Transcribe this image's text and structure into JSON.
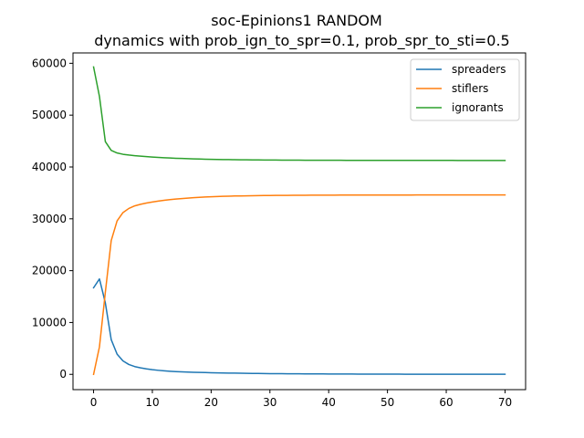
{
  "chart_data": {
    "type": "line",
    "title": "soc-Epinions1 RANDOM",
    "subtitle": "dynamics with prob_ign_to_spr=0.1, prob_spr_to_sti=0.5",
    "xlabel": "",
    "ylabel": "",
    "xlim": [
      -3.5,
      73.5
    ],
    "ylim": [
      -2950,
      62000
    ],
    "xticks": [
      0,
      10,
      20,
      30,
      40,
      50,
      60,
      70
    ],
    "yticks": [
      0,
      10000,
      20000,
      30000,
      40000,
      50000,
      60000
    ],
    "grid": false,
    "legend": "top-right",
    "x": [
      0,
      1,
      2,
      3,
      4,
      5,
      6,
      7,
      8,
      9,
      10,
      11,
      12,
      13,
      14,
      15,
      16,
      17,
      18,
      19,
      20,
      21,
      22,
      23,
      24,
      25,
      26,
      27,
      28,
      29,
      30,
      31,
      32,
      33,
      34,
      35,
      36,
      37,
      38,
      39,
      40,
      41,
      42,
      43,
      44,
      45,
      46,
      47,
      48,
      49,
      50,
      51,
      52,
      53,
      54,
      55,
      56,
      57,
      58,
      59,
      60,
      61,
      62,
      63,
      64,
      65,
      66,
      67,
      68,
      69,
      70
    ],
    "series": [
      {
        "name": "spreaders",
        "color": "#1f77b4",
        "values": [
          16700,
          18400,
          13800,
          6700,
          3900,
          2600,
          1900,
          1500,
          1250,
          1050,
          900,
          780,
          680,
          600,
          530,
          480,
          440,
          400,
          370,
          340,
          310,
          290,
          270,
          250,
          230,
          210,
          195,
          180,
          165,
          150,
          140,
          130,
          120,
          112,
          105,
          98,
          92,
          86,
          80,
          75,
          70,
          66,
          62,
          58,
          54,
          50,
          47,
          44,
          41,
          38,
          36,
          34,
          32,
          30,
          28,
          26,
          24,
          22,
          21,
          20,
          19,
          18,
          17,
          16,
          15,
          14,
          13,
          12,
          11,
          10,
          10
        ]
      },
      {
        "name": "stiflers",
        "color": "#ff7f0e",
        "values": [
          0,
          5300,
          15800,
          25800,
          29600,
          31200,
          32000,
          32500,
          32800,
          33050,
          33250,
          33420,
          33570,
          33700,
          33810,
          33910,
          34000,
          34080,
          34150,
          34210,
          34260,
          34300,
          34340,
          34370,
          34400,
          34420,
          34440,
          34460,
          34475,
          34490,
          34500,
          34510,
          34520,
          34530,
          34537,
          34544,
          34550,
          34555,
          34560,
          34564,
          34568,
          34572,
          34575,
          34578,
          34581,
          34583,
          34585,
          34587,
          34589,
          34590,
          34592,
          34593,
          34594,
          34595,
          34596,
          34597,
          34598,
          34599,
          34600,
          34600,
          34601,
          34601,
          34602,
          34602,
          34603,
          34603,
          34603,
          34604,
          34604,
          34604,
          34605
        ]
      },
      {
        "name": "ignorants",
        "color": "#2ca02c",
        "values": [
          59300,
          53600,
          44900,
          43200,
          42700,
          42450,
          42300,
          42180,
          42080,
          41990,
          41910,
          41840,
          41780,
          41730,
          41680,
          41640,
          41600,
          41560,
          41530,
          41500,
          41475,
          41455,
          41435,
          41418,
          41403,
          41390,
          41378,
          41367,
          41357,
          41348,
          41340,
          41333,
          41326,
          41320,
          41315,
          41310,
          41306,
          41302,
          41298,
          41295,
          41292,
          41289,
          41286,
          41284,
          41282,
          41280,
          41278,
          41276,
          41275,
          41274,
          41272,
          41271,
          41270,
          41269,
          41268,
          41267,
          41266,
          41265,
          41265,
          41264,
          41263,
          41263,
          41262,
          41262,
          41261,
          41261,
          41260,
          41260,
          41260,
          41259,
          41259
        ]
      }
    ]
  }
}
